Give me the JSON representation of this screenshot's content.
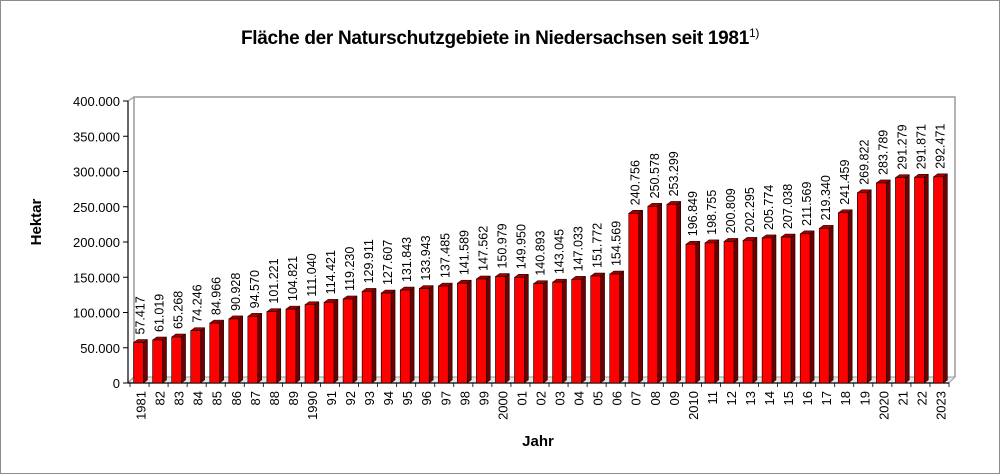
{
  "chart_data": {
    "type": "bar",
    "title": "Fläche der Naturschutzgebiete in Niedersachsen seit 1981",
    "title_footnote": "1)",
    "xlabel": "Jahr",
    "ylabel": "Hektar",
    "ylim": [
      0,
      400000
    ],
    "yticks": [
      0,
      50000,
      100000,
      150000,
      200000,
      250000,
      300000,
      350000,
      400000
    ],
    "ytick_labels": [
      "0",
      "50.000",
      "100.000",
      "150.000",
      "200.000",
      "250.000",
      "300.000",
      "350.000",
      "400.000"
    ],
    "grid": false,
    "legend": null,
    "bar_color": "#ff0000",
    "bar_dark_color": "#6e0000",
    "categories": [
      "1981",
      "82",
      "83",
      "84",
      "85",
      "86",
      "87",
      "88",
      "89",
      "1990",
      "91",
      "92",
      "93",
      "94",
      "95",
      "96",
      "97",
      "98",
      "99",
      "2000",
      "01",
      "02",
      "03",
      "04",
      "05",
      "06",
      "07",
      "08",
      "09",
      "2010",
      "11",
      "12",
      "13",
      "14",
      "15",
      "16",
      "17",
      "18",
      "19",
      "2020",
      "21",
      "22",
      "2023"
    ],
    "values": [
      57417,
      61019,
      65268,
      74246,
      84966,
      90928,
      94570,
      101221,
      104821,
      111040,
      114421,
      119230,
      129911,
      127607,
      131843,
      133943,
      137485,
      141589,
      147562,
      150979,
      149950,
      140893,
      143045,
      147033,
      151772,
      154569,
      240756,
      250578,
      253299,
      196849,
      198755,
      200809,
      202295,
      205774,
      207038,
      211569,
      219340,
      241459,
      269822,
      283789,
      291279,
      291871,
      292471
    ],
    "value_labels": [
      "57.417",
      "61.019",
      "65.268",
      "74.246",
      "84.966",
      "90.928",
      "94.570",
      "101.221",
      "104.821",
      "111.040",
      "114.421",
      "119.230",
      "129.911",
      "127.607",
      "131.843",
      "133.943",
      "137.485",
      "141.589",
      "147.562",
      "150.979",
      "149.950",
      "140.893",
      "143.045",
      "147.033",
      "151.772",
      "154.569",
      "240.756",
      "250.578",
      "253.299",
      "196.849",
      "198.755",
      "200.809",
      "202.295",
      "205.774",
      "207.038",
      "211.569",
      "219.340",
      "241.459",
      "269.822",
      "283.789",
      "291.279",
      "291.871",
      "292.471"
    ]
  }
}
